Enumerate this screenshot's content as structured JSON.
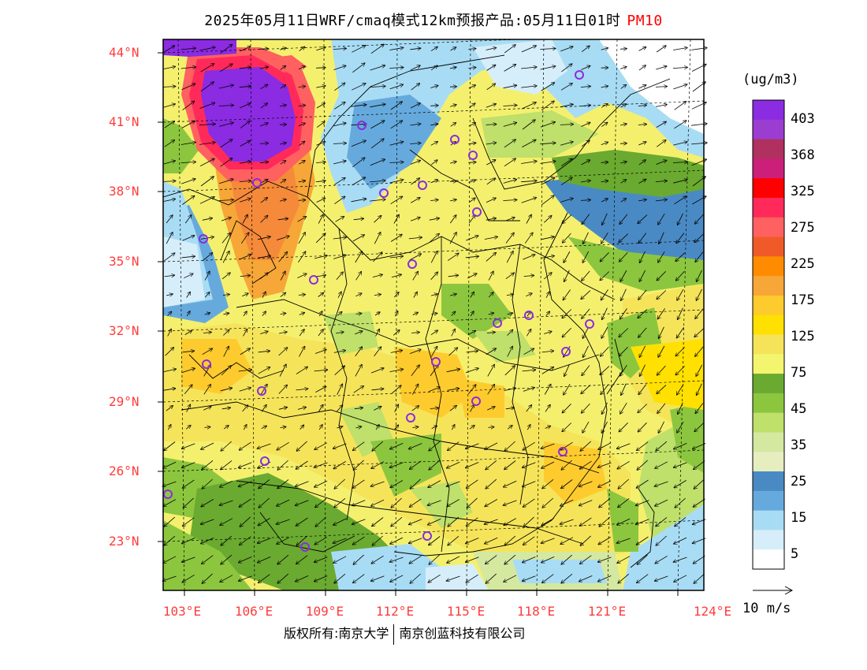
{
  "title": {
    "main": "2025年05月11日WRF/cmaq模式12km预报产品:05月11日01时",
    "species": "PM10"
  },
  "lat_labels": [
    "44°N",
    "41°N",
    "38°N",
    "35°N",
    "32°N",
    "29°N",
    "26°N",
    "23°N"
  ],
  "lon_labels": [
    "103°E",
    "106°E",
    "109°E",
    "112°E",
    "115°E",
    "118°E",
    "121°E",
    "124°E"
  ],
  "colorbar": {
    "unit": "(ug/m3)",
    "labels": [
      "403",
      "368",
      "325",
      "275",
      "225",
      "175",
      "125",
      "75",
      "45",
      "35",
      "25",
      "15",
      "5"
    ],
    "colors": [
      "#8b2be2",
      "#9b3dd0",
      "#b03060",
      "#cc1f7a",
      "#ff0000",
      "#ff2a5a",
      "#ff6060",
      "#f05a28",
      "#ff8c00",
      "#f7a638",
      "#fecb2e",
      "#ffe000",
      "#f5e45a",
      "#f4f56e",
      "#6aaa30",
      "#8cc63f",
      "#bfe06a",
      "#d4e8a0",
      "#e6eec0",
      "#4a8ac4",
      "#66aadd",
      "#a8dcf4",
      "#d6eefa",
      "#ffffff"
    ]
  },
  "wind_reference": {
    "label": "10 m/s"
  },
  "copyright": {
    "left": "版权所有:南京大学",
    "right": "南京创蓝科技有限公司"
  }
}
